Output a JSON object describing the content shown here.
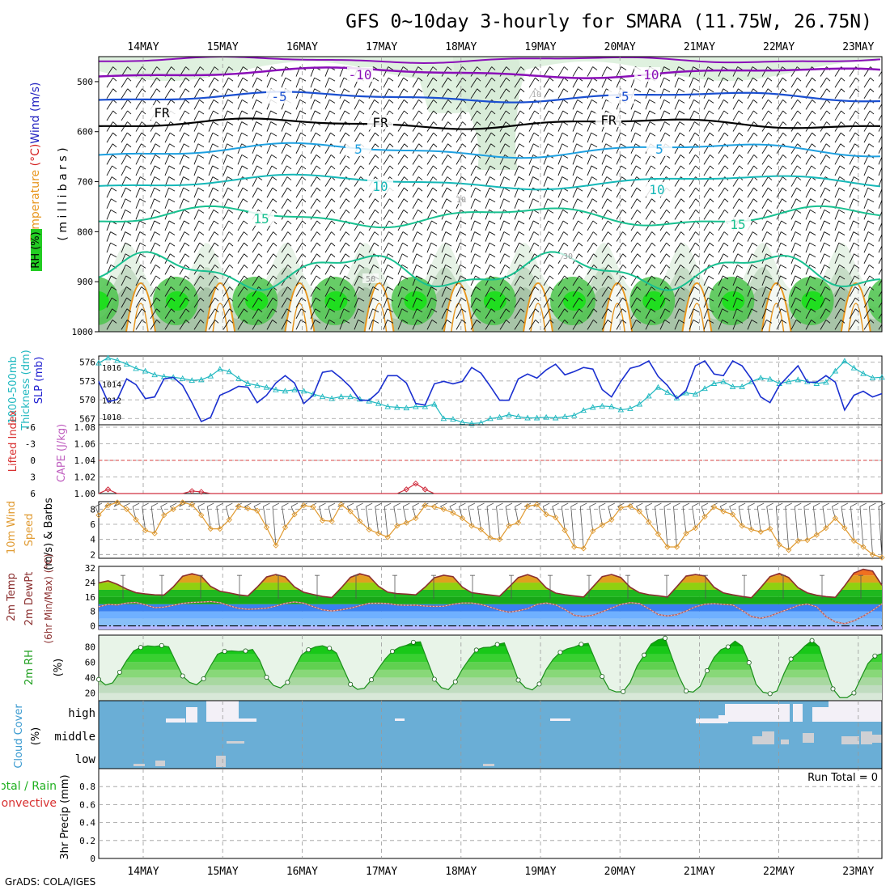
{
  "header": {
    "title": "GFS 0~10day 3-hourly for SMARA (11.75W, 26.75N)",
    "credit": "GrADS: COLA/IGES"
  },
  "x_axis": {
    "days": [
      "14MAY",
      "15MAY",
      "16MAY",
      "17MAY",
      "18MAY",
      "19MAY",
      "20MAY",
      "21MAY",
      "22MAY",
      "23MAY"
    ]
  },
  "chart_data": [
    {
      "id": "upper",
      "type": "heatmap",
      "labels": {
        "wind": "Wind (m/s)",
        "temperature": "Temperature (°C)",
        "rh": "RH (%)",
        "pressure": "( m i l l i b a r s )"
      },
      "y_ticks": [
        "500",
        "600",
        "700",
        "800",
        "900",
        "1000"
      ],
      "ylim": [
        450,
        1000
      ],
      "isotherm_labels": [
        "-10",
        "-10",
        "-5",
        "-5",
        "FR",
        "FR",
        "FR",
        "5",
        "5",
        "10",
        "10",
        "15",
        "15",
        "10",
        "10",
        "30",
        "50"
      ],
      "colors": {
        "m10": "#8a0fb8",
        "m5": "#1a4fd0",
        "fr": "#000000",
        "p5": "#1ea0e0",
        "p10": "#15b8b8",
        "p15": "#18c090",
        "warm": "#e8961e"
      }
    },
    {
      "id": "slp_thickness",
      "type": "line",
      "labels": {
        "left": "1000-500mb",
        "left2": "Thickness (dm)",
        "right": "SLP (mb)"
      },
      "left_ticks": [
        "576",
        "573",
        "570",
        "567"
      ],
      "right_ticks": [
        "1016",
        "1014",
        "1012",
        "1010"
      ],
      "series": [
        {
          "name": "SLP (mb)",
          "color": "#1a2fd0",
          "values": [
            1014.3,
            1011.8,
            1012.1,
            1014.6,
            1013.9,
            1012.2,
            1012.4,
            1014.6,
            1014.8,
            1013.8,
            1011.7,
            1009.4,
            1009.9,
            1012.6,
            1013.1,
            1013.7,
            1013.6,
            1011.7,
            1012.6,
            1014.1,
            1015.0,
            1014.1,
            1011.6,
            1012.6,
            1015.4,
            1015.6,
            1014.7,
            1013.6,
            1012.0,
            1012.0,
            1013.0,
            1015.0,
            1015.0,
            1014.1,
            1011.6,
            1011.4,
            1014.0,
            1014.3,
            1014.0,
            1014.3,
            1016.0,
            1015.3,
            1013.7,
            1012.0,
            1012.0,
            1014.6,
            1015.2,
            1014.7,
            1015.7,
            1016.4,
            1015.1,
            1015.5,
            1016.0,
            1015.8,
            1013.3,
            1012.4,
            1014.3,
            1015.9,
            1016.2,
            1016.8,
            1014.9,
            1013.8,
            1012.2,
            1013.2,
            1016.2,
            1016.8,
            1015.2,
            1015.0,
            1016.8,
            1016.2,
            1014.6,
            1012.4,
            1011.7,
            1013.8,
            1015.0,
            1016.2,
            1014.2,
            1014.2,
            1015.0,
            1014.2,
            1010.8,
            1012.6,
            1013.1,
            1012.4,
            1012.8
          ]
        },
        {
          "name": "1000-500mb Thickness (dm)",
          "color": "#20b8c0",
          "values": [
            575.9,
            576.7,
            576.3,
            575.7,
            575.0,
            574.6,
            574.0,
            573.7,
            573.6,
            573.4,
            573.1,
            573.2,
            573.8,
            574.9,
            574.5,
            573.4,
            572.6,
            572.3,
            572.0,
            571.6,
            571.4,
            571.6,
            571.4,
            570.9,
            570.5,
            570.2,
            570.5,
            570.5,
            570.1,
            569.8,
            569.4,
            568.9,
            568.8,
            568.7,
            568.9,
            568.9,
            569.3,
            567.0,
            566.9,
            566.4,
            566.2,
            566.3,
            567.0,
            567.2,
            567.6,
            567.3,
            567.1,
            567.1,
            567.2,
            567.1,
            567.3,
            567.5,
            568.3,
            568.8,
            569.0,
            568.9,
            568.4,
            568.6,
            569.3,
            570.6,
            572.0,
            571.2,
            570.3,
            571.1,
            570.9,
            571.8,
            572.6,
            572.9,
            572.1,
            572.1,
            572.9,
            573.5,
            573.3,
            572.6,
            572.9,
            573.2,
            572.9,
            572.6,
            572.8,
            574.6,
            576.2,
            575.1,
            574.2,
            573.5,
            573.6
          ]
        }
      ]
    },
    {
      "id": "cape_li",
      "type": "line",
      "labels": {
        "left": "Lifted Index",
        "right": "CAPE (J/kg)"
      },
      "left_ticks": [
        "-6",
        "-3",
        "0",
        "3",
        "6"
      ],
      "right_ticks": [
        "1.08",
        "1.06",
        "1.04",
        "1.02",
        "1.00"
      ],
      "ylim": [
        1.0,
        1.08
      ],
      "series": [
        {
          "name": "CAPE (J/kg)",
          "color": "#d03040",
          "values": [
            1.0,
            1.005,
            1.0,
            1.0,
            1.0,
            1.0,
            1.0,
            1.0,
            1.0,
            1.0,
            1.003,
            1.002,
            1.0,
            1.0,
            1.0,
            1.0,
            1.0,
            1.0,
            1.0,
            1.0,
            1.0,
            1.0,
            1.0,
            1.0,
            1.0,
            1.0,
            1.0,
            1.0,
            1.0,
            1.0,
            1.0,
            1.0,
            1.0,
            1.005,
            1.012,
            1.005,
            1.0,
            1.0,
            1.0,
            1.0,
            1.0,
            1.0,
            1.0,
            1.0,
            1.0,
            1.0,
            1.0,
            1.0,
            1.0,
            1.0,
            1.0,
            1.0,
            1.0,
            1.0,
            1.0,
            1.0,
            1.0,
            1.0,
            1.0,
            1.0,
            1.0,
            1.0,
            1.0,
            1.0,
            1.0,
            1.0,
            1.0,
            1.0,
            1.0,
            1.0,
            1.0,
            1.0,
            1.0,
            1.0,
            1.0,
            1.0,
            1.0,
            1.0,
            1.0,
            1.0,
            1.0,
            1.0,
            1.0,
            1.0,
            1.0
          ]
        }
      ]
    },
    {
      "id": "wind10m",
      "type": "line",
      "labels": {
        "a": "10m Wind",
        "b": "Speed",
        "c": "(m/s) & Barbs"
      },
      "y_ticks": [
        "8",
        "6",
        "4",
        "2"
      ],
      "ylim": [
        1.5,
        9
      ],
      "series": [
        {
          "name": "10m Wind Speed",
          "color": "#e09a30",
          "values": [
            7.2,
            8.5,
            8.9,
            8.0,
            6.6,
            5.2,
            4.8,
            7.2,
            8.0,
            8.9,
            8.6,
            7.2,
            5.4,
            5.4,
            6.6,
            8.4,
            8.1,
            7.8,
            5.6,
            3.2,
            5.6,
            7.3,
            8.5,
            8.3,
            6.5,
            6.4,
            8.6,
            7.7,
            6.4,
            5.3,
            4.8,
            4.3,
            5.8,
            6.2,
            6.8,
            8.5,
            8.3,
            8.0,
            7.5,
            6.8,
            5.8,
            5.3,
            4.2,
            4.0,
            5.8,
            6.2,
            8.4,
            8.6,
            7.3,
            6.9,
            5.2,
            3.0,
            2.8,
            5.1,
            5.9,
            6.6,
            8.2,
            8.4,
            7.7,
            6.3,
            4.7,
            3.0,
            3.0,
            4.8,
            5.5,
            7.0,
            8.3,
            7.7,
            7.3,
            5.8,
            5.3,
            5.0,
            5.4,
            3.3,
            2.6,
            3.8,
            3.9,
            4.6,
            5.5,
            6.8,
            5.5,
            3.8,
            3.0,
            2.0,
            1.6
          ]
        }
      ]
    },
    {
      "id": "temp2m",
      "type": "area",
      "labels": {
        "a": "2m Temp",
        "b": "2m DewPt",
        "c": "(6hr Min/Max) (°C)"
      },
      "y_ticks": [
        "32",
        "24",
        "16",
        "8",
        "0"
      ],
      "ylim": [
        -2,
        33
      ],
      "series": [
        {
          "name": "2m Temp",
          "color": "#8b2f2f",
          "values": [
            23.8,
            25.0,
            23.0,
            20.4,
            18.4,
            17.7,
            17.2,
            17.1,
            21.6,
            27.5,
            28.9,
            27.6,
            21.9,
            19.2,
            18.3,
            17.2,
            16.6,
            21.5,
            27.1,
            28.5,
            27.1,
            21.6,
            18.6,
            17.4,
            16.3,
            15.7,
            21.0,
            26.9,
            28.9,
            27.5,
            22.0,
            18.7,
            17.9,
            17.6,
            17.2,
            21.5,
            26.7,
            28.1,
            27.3,
            21.5,
            18.4,
            17.7,
            17.1,
            16.5,
            21.5,
            26.8,
            28.4,
            26.6,
            21.1,
            18.2,
            17.3,
            16.6,
            16.0,
            21.6,
            27.3,
            28.5,
            26.8,
            21.4,
            18.4,
            17.3,
            16.7,
            16.0,
            21.7,
            27.6,
            28.5,
            27.7,
            21.4,
            18.3,
            17.2,
            16.3,
            15.6,
            21.2,
            27.3,
            29.1,
            26.8,
            21.2,
            18.3,
            17.0,
            16.2,
            15.8,
            22.2,
            29.3,
            31.4,
            30.4,
            22.5
          ]
        },
        {
          "name": "2m DewPt",
          "color": "#b06060",
          "values": [
            10.6,
            11.9,
            11.6,
            12.7,
            13.0,
            11.7,
            10.1,
            10.4,
            11.4,
            12.5,
            13.0,
            13.2,
            13.5,
            12.9,
            11.2,
            9.7,
            9.2,
            9.4,
            9.8,
            11.0,
            12.5,
            13.3,
            12.6,
            10.7,
            8.9,
            8.3,
            8.9,
            9.8,
            11.2,
            12.5,
            12.6,
            12.4,
            11.6,
            11.4,
            11.5,
            11.0,
            10.8,
            10.9,
            12.0,
            12.7,
            12.7,
            11.9,
            10.4,
            8.7,
            7.6,
            8.4,
            9.5,
            11.9,
            12.7,
            11.7,
            9.1,
            5.9,
            5.2,
            5.9,
            7.8,
            9.9,
            11.9,
            12.9,
            12.4,
            9.5,
            6.3,
            5.5,
            6.2,
            8.2,
            10.6,
            12.0,
            12.3,
            11.9,
            11.6,
            8.6,
            5.2,
            4.2,
            5.4,
            7.5,
            9.3,
            11.3,
            12.1,
            10.6,
            5.2,
            2.2,
            1.2,
            2.8,
            5.4,
            8.6,
            12.2
          ]
        }
      ],
      "colors": {
        "band_warm": "#e0a020",
        "band_hot": "#f07020",
        "band_green": "#1fb81f",
        "band_cool": "#6fb0ff",
        "band_cold": "#3a80f0"
      }
    },
    {
      "id": "rh2m",
      "type": "area",
      "labels": {
        "a": "2m RH",
        "b": "(%)"
      },
      "y_ticks": [
        "80",
        "60",
        "40",
        "20"
      ],
      "ylim": [
        10,
        95
      ],
      "series": [
        {
          "name": "2m RH",
          "color": "#1a8f1a",
          "values": [
            37.5,
            30.4,
            33.2,
            46.9,
            62.1,
            74.6,
            79.1,
            81.1,
            80.4,
            81.5,
            79.9,
            60.8,
            42.0,
            33.7,
            30.6,
            38.4,
            55.0,
            70.2,
            74.0,
            74.6,
            73.8,
            74.5,
            76.4,
            62.6,
            40.4,
            29.8,
            26.6,
            33.7,
            51.8,
            69.1,
            76.0,
            79.8,
            81.2,
            78.0,
            71.7,
            51.3,
            31.2,
            24.7,
            26.2,
            37.1,
            51.5,
            64.3,
            74.0,
            79.2,
            81.8,
            85.7,
            86.3,
            61.9,
            37.8,
            27.0,
            24.3,
            34.5,
            50.9,
            64.1,
            75.7,
            78.9,
            79.4,
            82.9,
            85.0,
            61.6,
            36.7,
            27.0,
            24.0,
            31.6,
            50.5,
            63.9,
            72.7,
            77.2,
            79.6,
            83.1,
            84.4,
            62.8,
            41.4,
            24.8,
            21.4,
            21.7,
            33.6,
            55.1,
            69.1,
            83.4,
            88.9,
            91.0,
            65.3,
            40.9,
            22.5,
            21.2,
            28.5,
            48.8,
            66.0,
            76.3,
            79.8,
            87.2,
            81.0,
            59.3,
            31.4,
            21.0,
            19.1,
            22.7,
            45.1,
            64.0,
            71.8,
            81.0,
            88.0,
            80.0,
            51.2,
            25.3,
            13.9,
            13.9,
            20.0,
            39.2,
            58.1,
            68.0,
            71.0
          ]
        }
      ]
    },
    {
      "id": "cloud",
      "type": "heatmap",
      "labels": {
        "a": "Cloud Cover",
        "b": "(%)"
      },
      "y_ticks": [
        "high",
        "middle",
        "low"
      ],
      "colors": {
        "clear": "#6aaed6",
        "cloud": "#f3f0f7",
        "gray": "#cfd0d4"
      }
    },
    {
      "id": "precip",
      "type": "bar",
      "labels": {
        "left": "Total / Rain",
        "convective": "Convective",
        "axis": "3hr Precip (mm)",
        "run_total": "Run Total = 0"
      },
      "y_ticks": [
        "0.8",
        "0.6",
        "0.4",
        "0.2",
        "0"
      ],
      "ylim": [
        0,
        1
      ],
      "values": []
    }
  ]
}
